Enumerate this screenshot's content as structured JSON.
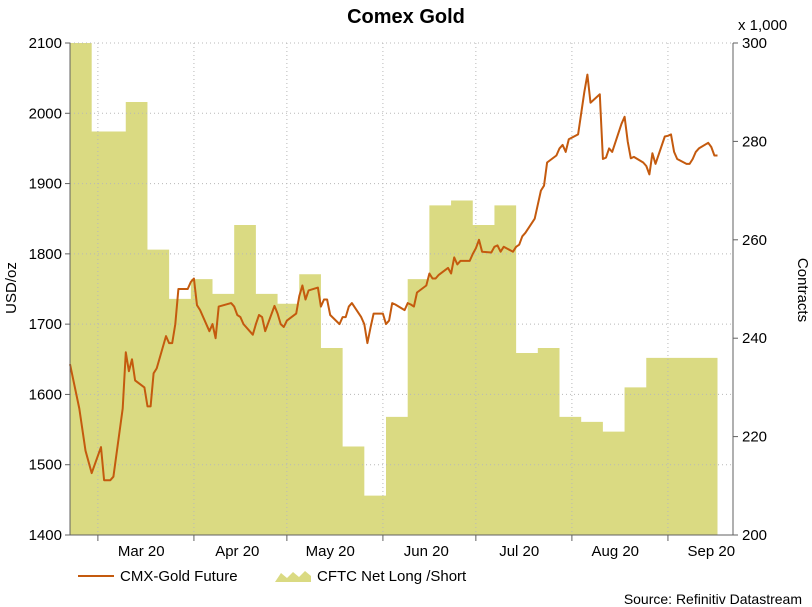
{
  "chart_data": {
    "type": "line",
    "title": "Comex Gold",
    "ylabel": "USD/oz",
    "y2label": "Contracts",
    "y2unit": "x 1,000",
    "ylim": [
      1400,
      2100
    ],
    "y2lim": [
      200,
      300
    ],
    "yticks": [
      1400,
      1500,
      1600,
      1700,
      1800,
      1900,
      2000,
      2100
    ],
    "y2ticks": [
      200,
      220,
      240,
      260,
      280,
      300
    ],
    "xlim": [
      "2020-02-21",
      "2020-09-22"
    ],
    "xticks": [
      {
        "label": "Mar 20",
        "date": "2020-03-15"
      },
      {
        "label": "Apr 20",
        "date": "2020-04-15"
      },
      {
        "label": "May 20",
        "date": "2020-05-15"
      },
      {
        "label": "Jun 20",
        "date": "2020-06-15"
      },
      {
        "label": "Jul 20",
        "date": "2020-07-15"
      },
      {
        "label": "Aug 20",
        "date": "2020-08-15"
      },
      {
        "label": "Sep 20",
        "date": "2020-09-15"
      }
    ],
    "month_boundaries": [
      "2020-03-01",
      "2020-04-01",
      "2020-05-01",
      "2020-06-01",
      "2020-07-01",
      "2020-08-01",
      "2020-09-01"
    ],
    "grid": true,
    "legend_position": "bottom-left",
    "series": [
      {
        "name": "CMX-Gold Future",
        "type": "line",
        "axis": "left",
        "color": "#c45a0e",
        "points": [
          [
            "2020-02-21",
            1643
          ],
          [
            "2020-02-24",
            1580
          ],
          [
            "2020-02-26",
            1520
          ],
          [
            "2020-02-28",
            1488
          ],
          [
            "2020-03-02",
            1525
          ],
          [
            "2020-03-03",
            1478
          ],
          [
            "2020-03-05",
            1478
          ],
          [
            "2020-03-06",
            1483
          ],
          [
            "2020-03-09",
            1580
          ],
          [
            "2020-03-10",
            1660
          ],
          [
            "2020-03-11",
            1633
          ],
          [
            "2020-03-12",
            1650
          ],
          [
            "2020-03-13",
            1620
          ],
          [
            "2020-03-16",
            1610
          ],
          [
            "2020-03-17",
            1583
          ],
          [
            "2020-03-18",
            1583
          ],
          [
            "2020-03-19",
            1630
          ],
          [
            "2020-03-20",
            1637
          ],
          [
            "2020-03-23",
            1683
          ],
          [
            "2020-03-24",
            1673
          ],
          [
            "2020-03-25",
            1673
          ],
          [
            "2020-03-26",
            1700
          ],
          [
            "2020-03-27",
            1750
          ],
          [
            "2020-03-30",
            1750
          ],
          [
            "2020-03-31",
            1760
          ],
          [
            "2020-04-01",
            1765
          ],
          [
            "2020-04-02",
            1727
          ],
          [
            "2020-04-03",
            1720
          ],
          [
            "2020-04-06",
            1690
          ],
          [
            "2020-04-07",
            1700
          ],
          [
            "2020-04-08",
            1680
          ],
          [
            "2020-04-09",
            1725
          ],
          [
            "2020-04-13",
            1730
          ],
          [
            "2020-04-14",
            1725
          ],
          [
            "2020-04-15",
            1713
          ],
          [
            "2020-04-16",
            1710
          ],
          [
            "2020-04-17",
            1700
          ],
          [
            "2020-04-20",
            1685
          ],
          [
            "2020-04-21",
            1700
          ],
          [
            "2020-04-22",
            1713
          ],
          [
            "2020-04-23",
            1710
          ],
          [
            "2020-04-24",
            1690
          ],
          [
            "2020-04-27",
            1726
          ],
          [
            "2020-04-28",
            1715
          ],
          [
            "2020-04-29",
            1700
          ],
          [
            "2020-04-30",
            1696
          ],
          [
            "2020-05-01",
            1705
          ],
          [
            "2020-05-04",
            1715
          ],
          [
            "2020-05-05",
            1740
          ],
          [
            "2020-05-06",
            1755
          ],
          [
            "2020-05-07",
            1735
          ],
          [
            "2020-05-08",
            1748
          ],
          [
            "2020-05-11",
            1752
          ],
          [
            "2020-05-12",
            1725
          ],
          [
            "2020-05-13",
            1735
          ],
          [
            "2020-05-14",
            1735
          ],
          [
            "2020-05-15",
            1713
          ],
          [
            "2020-05-18",
            1700
          ],
          [
            "2020-05-19",
            1710
          ],
          [
            "2020-05-20",
            1710
          ],
          [
            "2020-05-21",
            1725
          ],
          [
            "2020-05-22",
            1730
          ],
          [
            "2020-05-25",
            1710
          ],
          [
            "2020-05-26",
            1700
          ],
          [
            "2020-05-27",
            1673
          ],
          [
            "2020-05-28",
            1695
          ],
          [
            "2020-05-29",
            1715
          ],
          [
            "2020-06-01",
            1715
          ],
          [
            "2020-06-02",
            1700
          ],
          [
            "2020-06-03",
            1705
          ],
          [
            "2020-06-04",
            1730
          ],
          [
            "2020-06-05",
            1728
          ],
          [
            "2020-06-08",
            1720
          ],
          [
            "2020-06-09",
            1730
          ],
          [
            "2020-06-10",
            1728
          ],
          [
            "2020-06-11",
            1725
          ],
          [
            "2020-06-12",
            1745
          ],
          [
            "2020-06-15",
            1755
          ],
          [
            "2020-06-16",
            1772
          ],
          [
            "2020-06-17",
            1765
          ],
          [
            "2020-06-18",
            1765
          ],
          [
            "2020-06-19",
            1770
          ],
          [
            "2020-06-22",
            1780
          ],
          [
            "2020-06-23",
            1772
          ],
          [
            "2020-06-24",
            1795
          ],
          [
            "2020-06-25",
            1785
          ],
          [
            "2020-06-26",
            1790
          ],
          [
            "2020-06-29",
            1790
          ],
          [
            "2020-06-30",
            1800
          ],
          [
            "2020-07-01",
            1808
          ],
          [
            "2020-07-02",
            1820
          ],
          [
            "2020-07-03",
            1803
          ],
          [
            "2020-07-06",
            1802
          ],
          [
            "2020-07-07",
            1810
          ],
          [
            "2020-07-08",
            1812
          ],
          [
            "2020-07-09",
            1803
          ],
          [
            "2020-07-10",
            1810
          ],
          [
            "2020-07-13",
            1803
          ],
          [
            "2020-07-14",
            1810
          ],
          [
            "2020-07-15",
            1813
          ],
          [
            "2020-07-16",
            1825
          ],
          [
            "2020-07-17",
            1830
          ],
          [
            "2020-07-20",
            1850
          ],
          [
            "2020-07-21",
            1870
          ],
          [
            "2020-07-22",
            1890
          ],
          [
            "2020-07-23",
            1897
          ],
          [
            "2020-07-24",
            1930
          ],
          [
            "2020-07-27",
            1940
          ],
          [
            "2020-07-28",
            1950
          ],
          [
            "2020-07-29",
            1955
          ],
          [
            "2020-07-30",
            1945
          ],
          [
            "2020-07-31",
            1963
          ],
          [
            "2020-08-03",
            1970
          ],
          [
            "2020-08-04",
            2000
          ],
          [
            "2020-08-05",
            2030
          ],
          [
            "2020-08-06",
            2055
          ],
          [
            "2020-08-07",
            2015
          ],
          [
            "2020-08-10",
            2027
          ],
          [
            "2020-08-11",
            1935
          ],
          [
            "2020-08-12",
            1937
          ],
          [
            "2020-08-13",
            1950
          ],
          [
            "2020-08-14",
            1945
          ],
          [
            "2020-08-17",
            1985
          ],
          [
            "2020-08-18",
            1995
          ],
          [
            "2020-08-19",
            1960
          ],
          [
            "2020-08-20",
            1936
          ],
          [
            "2020-08-21",
            1938
          ],
          [
            "2020-08-24",
            1930
          ],
          [
            "2020-08-25",
            1925
          ],
          [
            "2020-08-26",
            1913
          ],
          [
            "2020-08-27",
            1943
          ],
          [
            "2020-08-28",
            1928
          ],
          [
            "2020-08-31",
            1967
          ],
          [
            "2020-09-01",
            1968
          ],
          [
            "2020-09-02",
            1970
          ],
          [
            "2020-09-03",
            1945
          ],
          [
            "2020-09-04",
            1935
          ],
          [
            "2020-09-07",
            1928
          ],
          [
            "2020-09-08",
            1928
          ],
          [
            "2020-09-09",
            1935
          ],
          [
            "2020-09-10",
            1945
          ],
          [
            "2020-09-11",
            1950
          ],
          [
            "2020-09-14",
            1958
          ],
          [
            "2020-09-15",
            1952
          ],
          [
            "2020-09-16",
            1940
          ],
          [
            "2020-09-17",
            1940
          ]
        ]
      },
      {
        "name": "CFTC Net Long /Short",
        "type": "area",
        "axis": "right",
        "color": "#dada82",
        "steps": [
          [
            "2020-02-21",
            300
          ],
          [
            "2020-02-28",
            282
          ],
          [
            "2020-03-06",
            282
          ],
          [
            "2020-03-10",
            288
          ],
          [
            "2020-03-17",
            258
          ],
          [
            "2020-03-24",
            248
          ],
          [
            "2020-03-31",
            252
          ],
          [
            "2020-04-07",
            249
          ],
          [
            "2020-04-14",
            263
          ],
          [
            "2020-04-21",
            249
          ],
          [
            "2020-04-28",
            247
          ],
          [
            "2020-05-05",
            253
          ],
          [
            "2020-05-12",
            238
          ],
          [
            "2020-05-19",
            218
          ],
          [
            "2020-05-26",
            208
          ],
          [
            "2020-06-02",
            224
          ],
          [
            "2020-06-09",
            252
          ],
          [
            "2020-06-16",
            267
          ],
          [
            "2020-06-23",
            268
          ],
          [
            "2020-06-30",
            263
          ],
          [
            "2020-07-07",
            267
          ],
          [
            "2020-07-14",
            237
          ],
          [
            "2020-07-21",
            238
          ],
          [
            "2020-07-28",
            224
          ],
          [
            "2020-08-04",
            223
          ],
          [
            "2020-08-11",
            221
          ],
          [
            "2020-08-18",
            230
          ],
          [
            "2020-08-25",
            236
          ],
          [
            "2020-09-01",
            236
          ]
        ],
        "end": "2020-09-17"
      }
    ]
  },
  "legend": {
    "items": [
      {
        "label": "CMX-Gold Future"
      },
      {
        "label": "CFTC Net Long /Short"
      }
    ]
  },
  "source": "Source: Refinitiv Datastream"
}
